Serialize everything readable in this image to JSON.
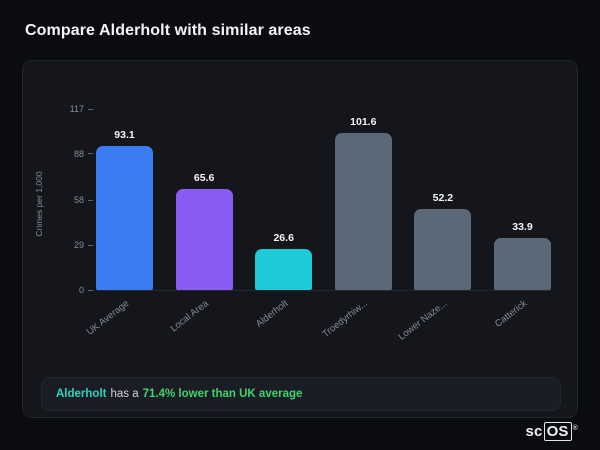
{
  "page": {
    "title": "Compare Alderholt with similar areas"
  },
  "chart_data": {
    "type": "bar",
    "categories": [
      "UK Average",
      "Local Area",
      "Alderholt",
      "Troedyrhiw...",
      "Lower Naze...",
      "Catterick"
    ],
    "values": [
      93.1,
      65.6,
      26.6,
      101.6,
      52.2,
      33.9
    ],
    "bar_colors": [
      "#3b7df5",
      "#8a5cf6",
      "#1ccad8",
      "#5a6878",
      "#5a6878",
      "#5a6878"
    ],
    "title": "",
    "xlabel": "",
    "ylabel": "Crimes per 1,000",
    "yticks": [
      0,
      29,
      58,
      88,
      117
    ],
    "ylim": [
      0,
      117
    ],
    "grid": false,
    "legend": "none",
    "value_labels": true
  },
  "callout": {
    "area": "Alderholt",
    "middle": "has a",
    "highlight": "71.4% lower than UK average"
  },
  "logo": {
    "prefix": "sc",
    "suffix": "OS",
    "mark": "®"
  },
  "colors": {
    "background": "#0b0c0f",
    "card": "#14161b",
    "callout_bg": "#1a1d23",
    "accent_blue": "#3b7df5",
    "accent_purple": "#8a5cf6",
    "accent_cyan": "#1ccad8",
    "bar_gray": "#5a6878",
    "highlight_green": "#3fd46c",
    "area_teal": "#2bd4c0",
    "axis_text": "#868c96"
  }
}
